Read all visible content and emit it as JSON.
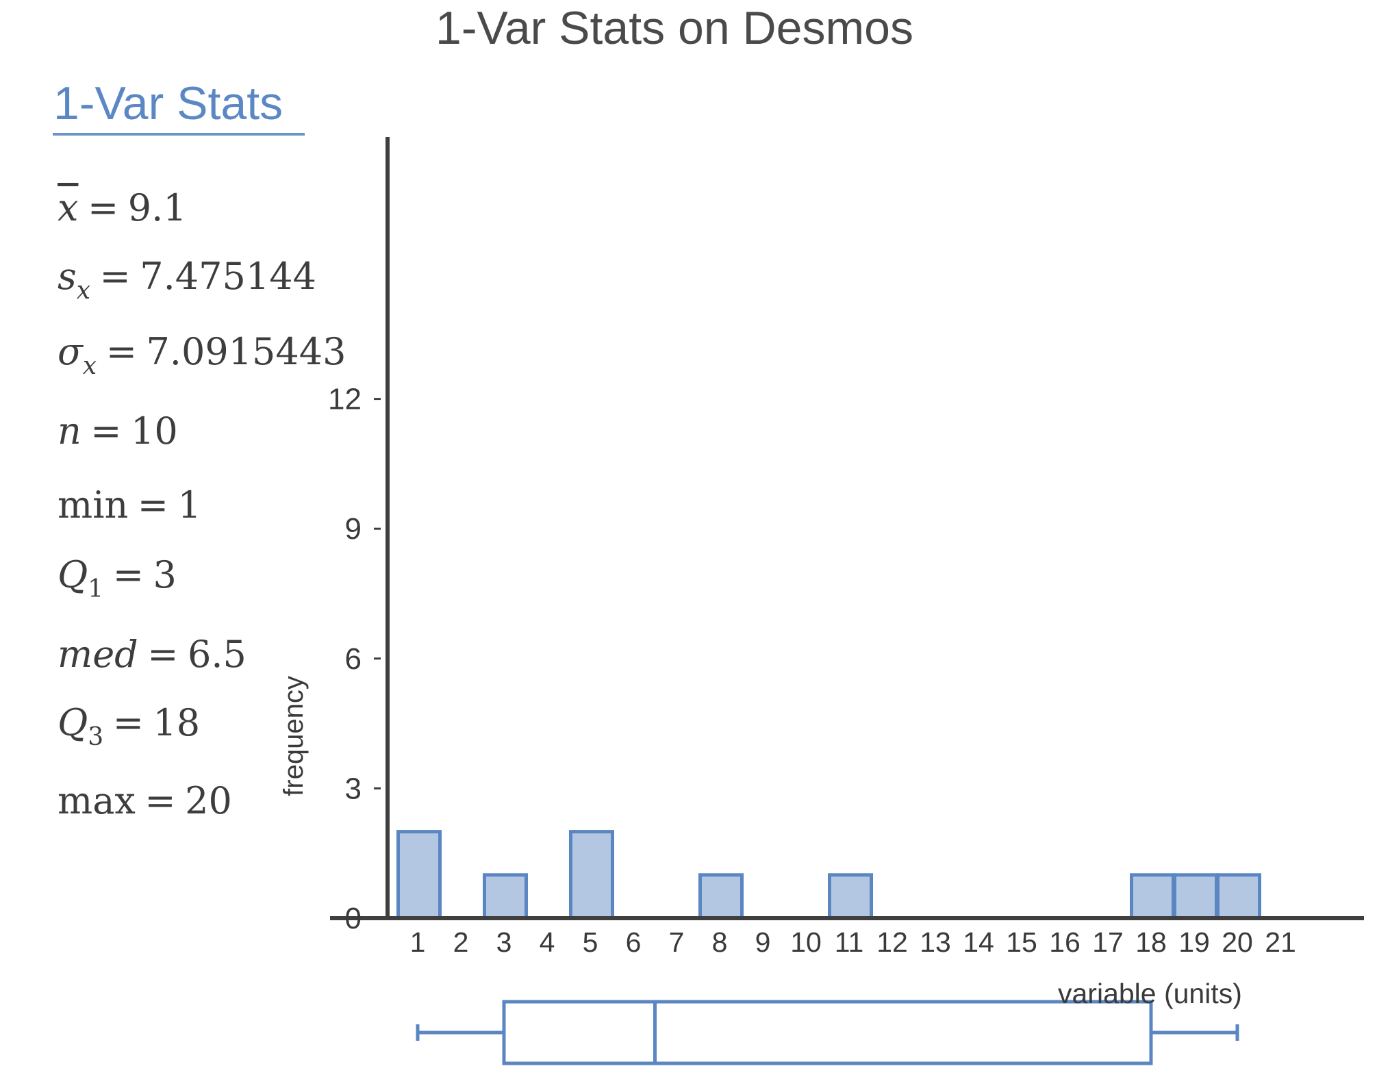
{
  "title": "1-Var Stats on Desmos",
  "panel": {
    "heading": "1-Var Stats",
    "stats": {
      "mean": {
        "symbol": "x",
        "value": "9.1"
      },
      "sx": {
        "symbol": "s",
        "sub": "x",
        "value": "7.475144"
      },
      "sigma": {
        "symbol": "σ",
        "sub": "x",
        "value": "7.0915443"
      },
      "n": {
        "symbol": "n",
        "value": "10"
      },
      "min": {
        "symbol": "min",
        "value": "1"
      },
      "q1": {
        "symbol": "Q",
        "sub": "1",
        "value": "3"
      },
      "med": {
        "symbol": "med",
        "value": "6.5"
      },
      "q3": {
        "symbol": "Q",
        "sub": "3",
        "value": "18"
      },
      "max": {
        "symbol": "max",
        "value": "20"
      }
    }
  },
  "colors": {
    "accent": "#5b87c4",
    "bar_fill": "#b3c7e2",
    "bar_stroke": "#5a86c2",
    "axis": "#3f3f3f"
  },
  "chart_data": {
    "type": "bar",
    "title": "1-Var Stats on Desmos",
    "xlabel": "variable (units)",
    "ylabel": "frequency",
    "x_ticks": [
      1,
      2,
      3,
      4,
      5,
      6,
      7,
      8,
      9,
      10,
      11,
      12,
      13,
      14,
      15,
      16,
      17,
      18,
      19,
      20,
      21
    ],
    "y_ticks": [
      0,
      3,
      6,
      9,
      12
    ],
    "ylim": [
      0,
      18
    ],
    "xlim": [
      0.5,
      22.5
    ],
    "bin_width": 1,
    "bars": [
      {
        "x": 1,
        "count": 2
      },
      {
        "x": 3,
        "count": 1
      },
      {
        "x": 5,
        "count": 2
      },
      {
        "x": 8,
        "count": 1
      },
      {
        "x": 11,
        "count": 1
      },
      {
        "x": 18,
        "count": 1
      },
      {
        "x": 19,
        "count": 1
      },
      {
        "x": 20,
        "count": 1
      }
    ],
    "boxplot": {
      "min": 1,
      "q1": 3,
      "median": 6.5,
      "q3": 18,
      "max": 20
    },
    "grid": false,
    "legend": "none"
  }
}
